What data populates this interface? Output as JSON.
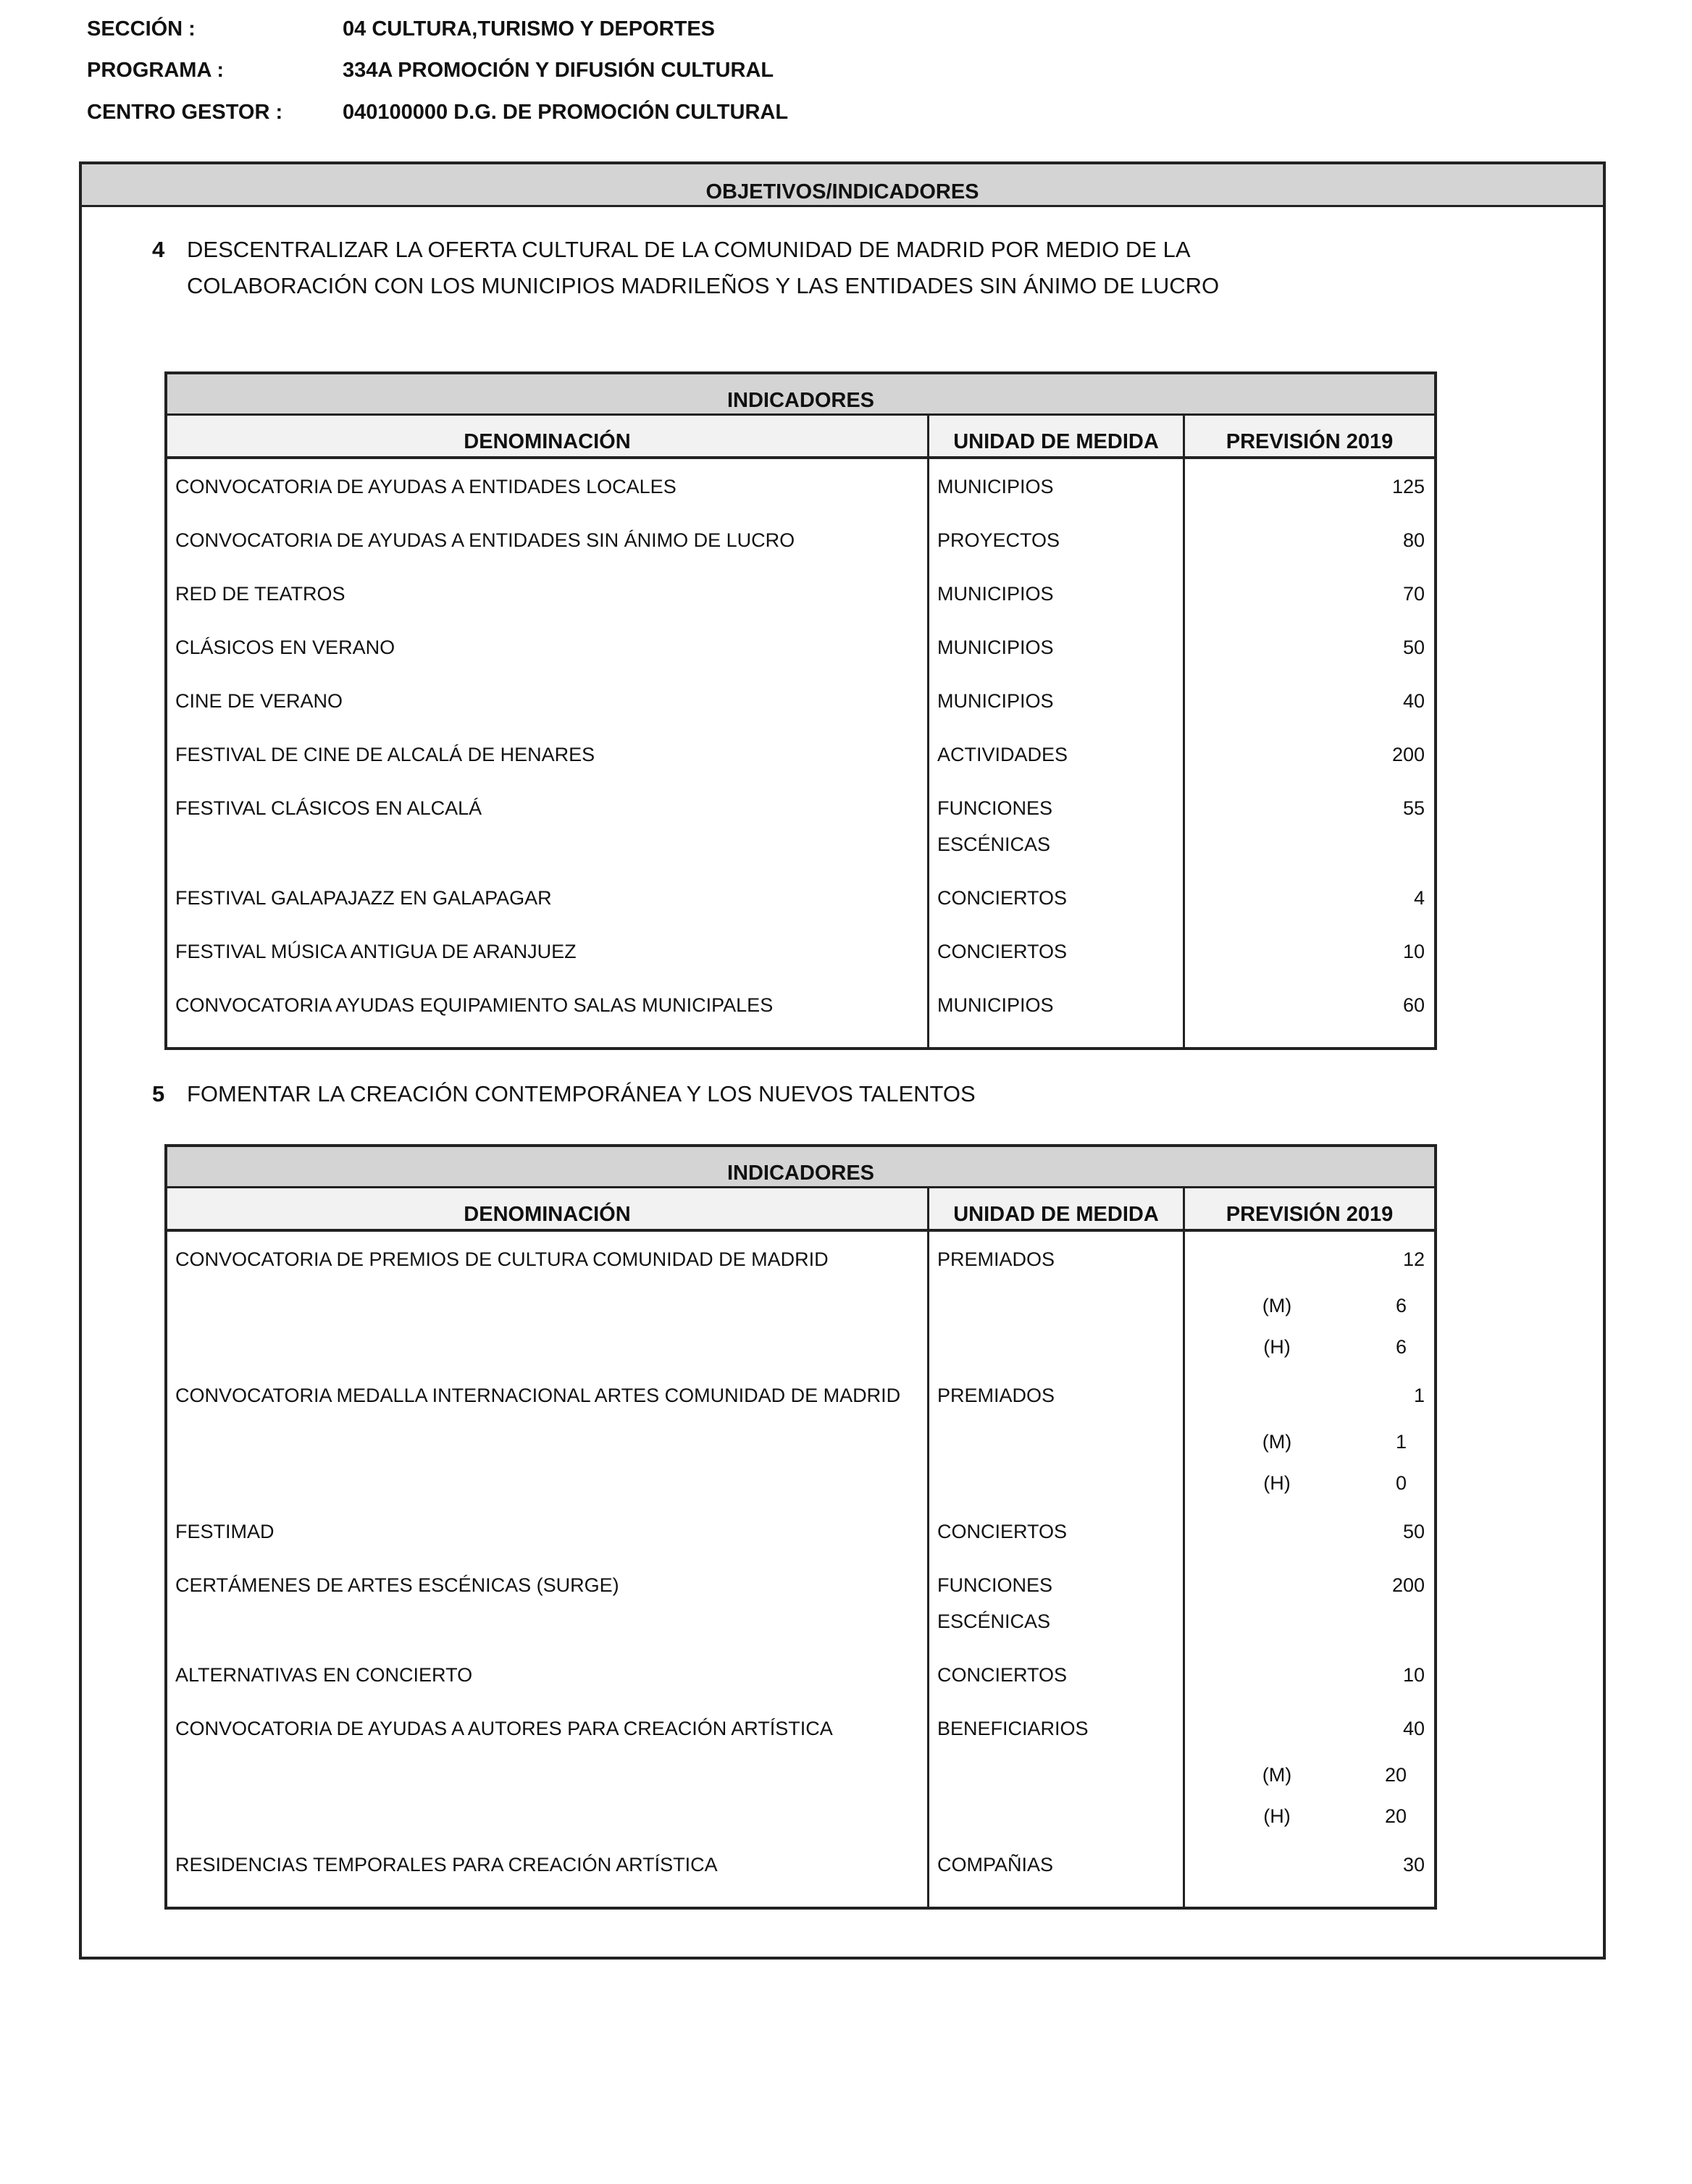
{
  "header": {
    "seccion": {
      "label": "SECCIÓN :",
      "value": "04 CULTURA,TURISMO Y DEPORTES"
    },
    "programa": {
      "label": "PROGRAMA :",
      "value": "334A  PROMOCIÓN Y DIFUSIÓN CULTURAL"
    },
    "centro": {
      "label": "CENTRO GESTOR :",
      "value": "040100000  D.G. DE PROMOCIÓN CULTURAL"
    }
  },
  "box_title": "OBJETIVOS/INDICADORES",
  "colors": {
    "band": "#d4d4d4",
    "column_header": "#f2f2f2",
    "border": "#222222"
  },
  "objectives": [
    {
      "number": "4",
      "text": "DESCENTRALIZAR LA OFERTA CULTURAL DE LA COMUNIDAD DE MADRID POR MEDIO DE LA COLABORACIÓN CON LOS MUNICIPIOS MADRILEÑOS Y LAS ENTIDADES SIN ÁNIMO DE LUCRO",
      "table": {
        "title": "INDICADORES",
        "columns": [
          "DENOMINACIÓN",
          "UNIDAD DE MEDIDA",
          "PREVISIÓN 2019"
        ],
        "rows": [
          {
            "name": "CONVOCATORIA DE AYUDAS A ENTIDADES LOCALES",
            "unit": "MUNICIPIOS",
            "value": "125"
          },
          {
            "name": "CONVOCATORIA DE AYUDAS A ENTIDADES SIN ÁNIMO DE LUCRO",
            "unit": "PROYECTOS",
            "value": "80"
          },
          {
            "name": "RED DE TEATROS",
            "unit": "MUNICIPIOS",
            "value": "70"
          },
          {
            "name": "CLÁSICOS EN VERANO",
            "unit": "MUNICIPIOS",
            "value": "50"
          },
          {
            "name": "CINE DE VERANO",
            "unit": "MUNICIPIOS",
            "value": "40"
          },
          {
            "name": "FESTIVAL DE CINE DE ALCALÁ DE HENARES",
            "unit": "ACTIVIDADES",
            "value": "200"
          },
          {
            "name": "FESTIVAL CLÁSICOS EN ALCALÁ",
            "unit": "FUNCIONES ESCÉNICAS",
            "value": "55"
          },
          {
            "name": "FESTIVAL GALAPAJAZZ EN GALAPAGAR",
            "unit": "CONCIERTOS",
            "value": "4"
          },
          {
            "name": "FESTIVAL MÚSICA ANTIGUA DE ARANJUEZ",
            "unit": "CONCIERTOS",
            "value": "10"
          },
          {
            "name": "CONVOCATORIA AYUDAS EQUIPAMIENTO SALAS MUNICIPALES",
            "unit": "MUNICIPIOS",
            "value": "60"
          }
        ]
      }
    },
    {
      "number": "5",
      "text": "FOMENTAR LA CREACIÓN CONTEMPORÁNEA Y LOS NUEVOS TALENTOS",
      "table": {
        "title": "INDICADORES",
        "columns": [
          "DENOMINACIÓN",
          "UNIDAD DE MEDIDA",
          "PREVISIÓN 2019"
        ],
        "rows": [
          {
            "name": "CONVOCATORIA DE PREMIOS DE CULTURA COMUNIDAD DE MADRID",
            "unit": "PREMIADOS",
            "value": "12",
            "breakdown": [
              {
                "group": "(M)",
                "value": "6"
              },
              {
                "group": "(H)",
                "value": "6"
              }
            ]
          },
          {
            "name": "CONVOCATORIA MEDALLA INTERNACIONAL ARTES COMUNIDAD DE MADRID",
            "unit": "PREMIADOS",
            "value": "1",
            "breakdown": [
              {
                "group": "(M)",
                "value": "1"
              },
              {
                "group": "(H)",
                "value": "0"
              }
            ]
          },
          {
            "name": "FESTIMAD",
            "unit": "CONCIERTOS",
            "value": "50"
          },
          {
            "name": "CERTÁMENES DE ARTES ESCÉNICAS (SURGE)",
            "unit": "FUNCIONES ESCÉNICAS",
            "value": "200"
          },
          {
            "name": "ALTERNATIVAS EN CONCIERTO",
            "unit": "CONCIERTOS",
            "value": "10"
          },
          {
            "name": "CONVOCATORIA DE AYUDAS A AUTORES PARA CREACIÓN ARTÍSTICA",
            "unit": "BENEFICIARIOS",
            "value": "40",
            "breakdown": [
              {
                "group": "(M)",
                "value": "20"
              },
              {
                "group": "(H)",
                "value": "20"
              }
            ]
          },
          {
            "name": "RESIDENCIAS TEMPORALES PARA CREACIÓN ARTÍSTICA",
            "unit": "COMPAÑIAS",
            "value": "30"
          }
        ]
      }
    }
  ]
}
